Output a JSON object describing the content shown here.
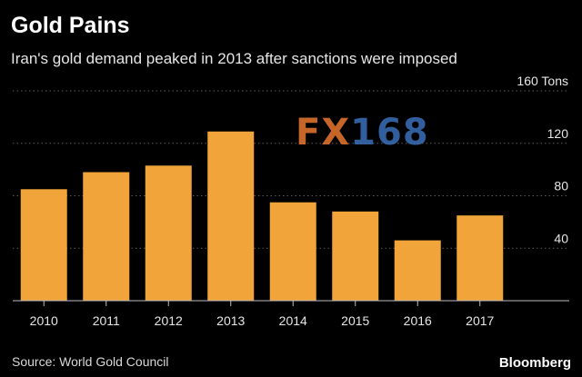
{
  "title": "Gold Pains",
  "subtitle": "Iran's gold demand peaked in 2013 after sanctions were imposed",
  "source": "Source: World Gold Council",
  "brand": "Bloomberg",
  "watermark": {
    "fx": "FX",
    "num": "168"
  },
  "colors": {
    "bar": "#f0a43a",
    "grid": "#5a5a5a",
    "axis": "#bdbdbd",
    "background": "#000000"
  },
  "chart_data": {
    "type": "bar",
    "categories": [
      "2010",
      "2011",
      "2012",
      "2013",
      "2014",
      "2015",
      "2016",
      "2017"
    ],
    "values": [
      85,
      98,
      103,
      129,
      75,
      68,
      46,
      65
    ],
    "ylim": [
      0,
      160
    ],
    "yticks": [
      40,
      80,
      120,
      160
    ],
    "ytick_labels": [
      "40",
      "80",
      "120",
      "160 Tons"
    ],
    "grid": true
  }
}
